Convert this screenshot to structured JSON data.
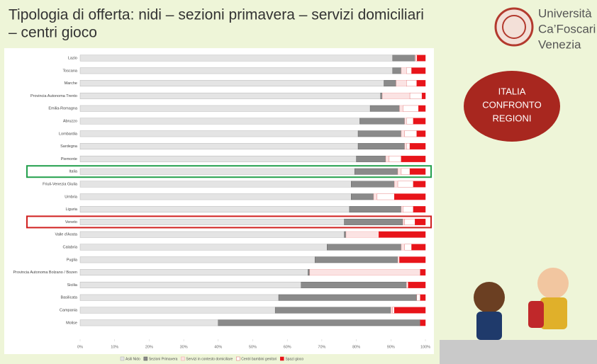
{
  "slide": {
    "title": [
      "Tipologia di offerta: nidi – sezioni primavera – servizi domiciliari",
      "– centri gioco"
    ],
    "logo": [
      "Università",
      "Ca’Foscari",
      "Venezia"
    ],
    "badge": [
      "ITALIA",
      "CONFRONTO",
      "REGIONI"
    ]
  },
  "chart_data": {
    "type": "stacked-bar-horizontal",
    "categories": [
      "Lazio",
      "Toscana",
      "Marche",
      "Provincia Autonoma Trento",
      "Emilia-Romagna",
      "Abruzzo",
      "Lombardia",
      "Sardegna",
      "Piemonte",
      "Italia",
      "Friuli-Venezia Giulia",
      "Umbria",
      "Liguria",
      "Veneto",
      "Valle d'Aosta",
      "Calabria",
      "Puglia",
      "Provincia Autonoma Bolzano / Bozen",
      "Sicilia",
      "Basilicata",
      "Campania",
      "Molise"
    ],
    "series": [
      {
        "name": "Asili Nido",
        "color": "#e4e4e4",
        "values": [
          90.5,
          90.5,
          88,
          87,
          84,
          81,
          80.5,
          80.5,
          80,
          79.5,
          78.5,
          78.5,
          78,
          76.5,
          76.5,
          71.5,
          68,
          66,
          64,
          57.5,
          56.5,
          40
        ]
      },
      {
        "name": "Sezioni Primavera",
        "color": "#8a8a8a",
        "values": [
          6.5,
          2.5,
          3.5,
          0.5,
          8.5,
          13,
          12.5,
          13.5,
          8.5,
          12.5,
          12.5,
          6.5,
          15,
          17,
          0.5,
          21.5,
          24,
          0.5,
          30.5,
          40,
          33.5,
          58.5
        ]
      },
      {
        "name": "Servizi in contesto domiciliare",
        "color": "#fbe3e3",
        "values": [
          0.3,
          1.5,
          3,
          8,
          1,
          0.5,
          1,
          0.5,
          1,
          1,
          1,
          1,
          0.5,
          0.5,
          9.5,
          1,
          0.5,
          32,
          0,
          0,
          0.5,
          0
        ]
      },
      {
        "name": "Centri bambini genitori",
        "color": "#ffffff",
        "values": [
          0.3,
          1.5,
          3,
          3.5,
          4.5,
          2,
          3.5,
          1,
          3.5,
          2.5,
          4.5,
          5,
          3,
          3,
          0,
          2,
          0,
          0,
          0.5,
          1,
          0.5,
          0
        ]
      },
      {
        "name": "Spazi gioco",
        "color": "#e8141a",
        "values": [
          2.4,
          4,
          2.5,
          1,
          2,
          3.5,
          2.5,
          4.5,
          7,
          4.5,
          3.5,
          9,
          3.5,
          3,
          13.5,
          4,
          7.5,
          1.5,
          5,
          1.5,
          9,
          1.5
        ]
      }
    ],
    "xlim": [
      0,
      100
    ],
    "xticks": [
      {
        "value": 0,
        "label": "0%"
      },
      {
        "value": 10,
        "label": "10%"
      },
      {
        "value": 20,
        "label": "20%"
      },
      {
        "value": 30,
        "label": "30%"
      },
      {
        "value": 40,
        "label": "40%"
      },
      {
        "value": 50,
        "label": "50%"
      },
      {
        "value": 60,
        "label": "60%"
      },
      {
        "value": 70,
        "label": "70%"
      },
      {
        "value": 80,
        "label": "80%"
      },
      {
        "value": 90,
        "label": "90%"
      },
      {
        "value": 100,
        "label": "100%"
      }
    ],
    "highlights": [
      {
        "category": "Italia",
        "color": "#23a04c"
      },
      {
        "category": "Veneto",
        "color": "#d0201f"
      }
    ]
  }
}
